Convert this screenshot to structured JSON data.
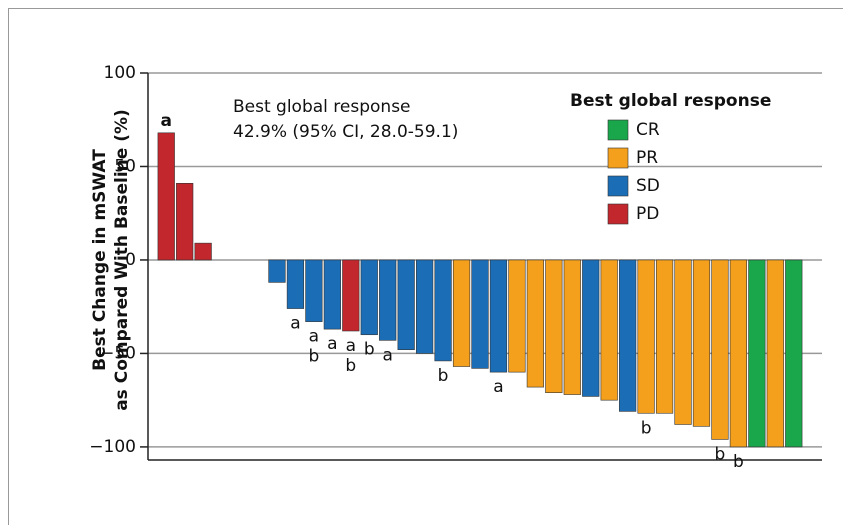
{
  "chart_data": {
    "type": "bar",
    "y_label_lines": [
      "Best  Change in mSWAT",
      "as Compared With Baseline (%)"
    ],
    "annotation_lines": [
      "Best global response",
      "42.9% (95% CI, 28.0-59.1)"
    ],
    "legend_title": "Best global response",
    "categories": [
      null,
      null,
      null,
      null,
      null,
      null,
      null,
      null,
      null,
      null,
      null,
      null,
      null,
      null,
      null,
      null,
      null,
      null,
      null,
      null,
      null,
      null,
      null,
      null,
      null,
      null,
      null,
      null,
      null,
      null,
      null,
      null,
      null,
      null,
      null
    ],
    "series": [
      {
        "name": "CR",
        "color": "#1aa64b",
        "values": [
          null,
          null,
          null,
          null,
          null,
          null,
          null,
          null,
          null,
          null,
          null,
          null,
          null,
          null,
          null,
          null,
          null,
          null,
          null,
          null,
          null,
          null,
          null,
          null,
          null,
          null,
          null,
          null,
          null,
          null,
          null,
          null,
          -100,
          null,
          -100
        ]
      },
      {
        "name": "PR",
        "color": "#f5a01d",
        "values": [
          null,
          null,
          null,
          null,
          null,
          null,
          null,
          null,
          null,
          null,
          null,
          null,
          null,
          null,
          null,
          null,
          -57,
          null,
          null,
          -60,
          -68,
          -71,
          -72,
          null,
          -75,
          null,
          -82,
          -82,
          -88,
          -89,
          -96,
          -100,
          null,
          -100,
          null
        ]
      },
      {
        "name": "SD",
        "color": "#1b6db6",
        "values": [
          null,
          null,
          null,
          null,
          null,
          null,
          -12,
          -26,
          -33,
          -37,
          null,
          -40,
          -43,
          -48,
          -50,
          -54,
          null,
          -58,
          -60,
          null,
          null,
          null,
          null,
          -73,
          null,
          -81,
          null,
          null,
          null,
          null,
          null,
          null,
          null,
          null,
          null
        ]
      },
      {
        "name": "PD",
        "color": "#c1272d",
        "values": [
          68,
          41,
          9,
          null,
          null,
          null,
          null,
          null,
          null,
          null,
          -38,
          null,
          null,
          null,
          null,
          null,
          null,
          null,
          null,
          null,
          null,
          null,
          null,
          null,
          null,
          null,
          null,
          null,
          null,
          null,
          null,
          null,
          null,
          null,
          null
        ]
      }
    ],
    "notes": [
      [
        "a"
      ],
      [],
      [],
      [],
      [],
      [],
      [],
      [
        "a"
      ],
      [
        "a",
        "b"
      ],
      [
        "a"
      ],
      [
        "a",
        "b"
      ],
      [
        "b"
      ],
      [
        "a"
      ],
      [],
      [],
      [
        "b"
      ],
      [],
      [],
      [
        "a"
      ],
      [],
      [],
      [],
      [],
      [],
      [],
      [],
      [
        "b"
      ],
      [],
      [],
      [],
      [
        "b"
      ],
      [
        "b"
      ],
      [],
      [],
      []
    ],
    "ylim": [
      -107,
      100
    ],
    "yticks": [
      {
        "value": -100,
        "label": "−100"
      },
      {
        "value": -50,
        "label": "−50"
      },
      0,
      50,
      100
    ],
    "grid": true
  }
}
